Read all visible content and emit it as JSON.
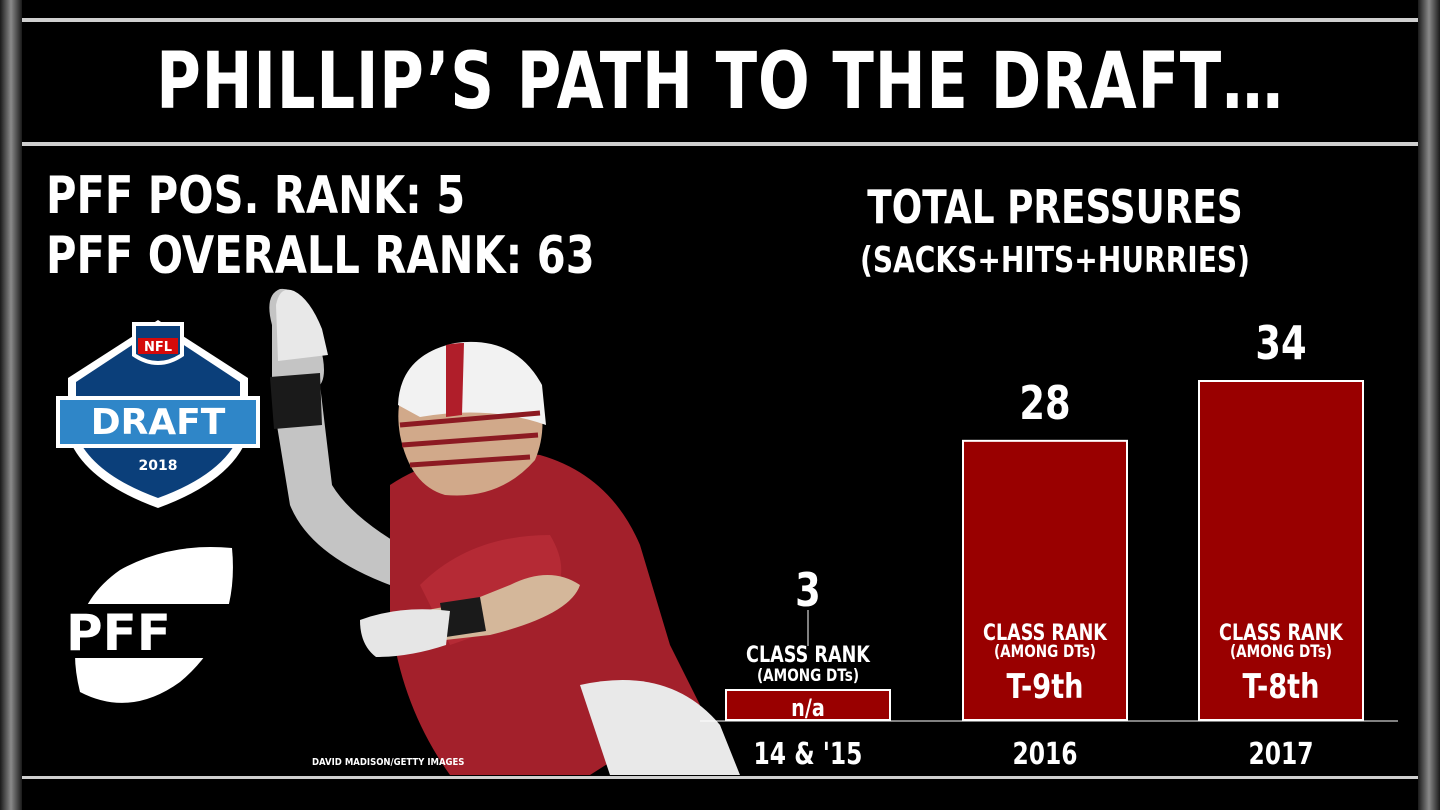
{
  "header": {
    "title": "PHILLIP’S PATH TO THE DRAFT…"
  },
  "ranks": {
    "position_rank": "PFF POS. RANK: 5",
    "overall_rank": "PFF OVERALL RANK: 63"
  },
  "logos": {
    "nfl_shield": "NFL",
    "draft": "DRAFT",
    "year": "2018",
    "pff": "PFF"
  },
  "photo_credit": "DAVID MADISON/GETTY IMAGES",
  "colors": {
    "bar": "#990000",
    "bar_border": "#ffffff",
    "background": "#000000"
  },
  "chart_data": {
    "type": "bar",
    "title": "TOTAL PRESSURES",
    "subtitle": "(SACKS+HITS+HURRIES)",
    "categories": [
      "14 & '15",
      "2016",
      "2017"
    ],
    "values": [
      3,
      28,
      34
    ],
    "value_labels": [
      "3",
      "28",
      "34"
    ],
    "class_rank_label": "CLASS RANK",
    "class_rank_sublabel": "(AMONG DTs)",
    "class_ranks": [
      "n/a",
      "T-9th",
      "T-8th"
    ],
    "ylim": [
      0,
      34
    ],
    "grid": false,
    "legend": "none"
  }
}
